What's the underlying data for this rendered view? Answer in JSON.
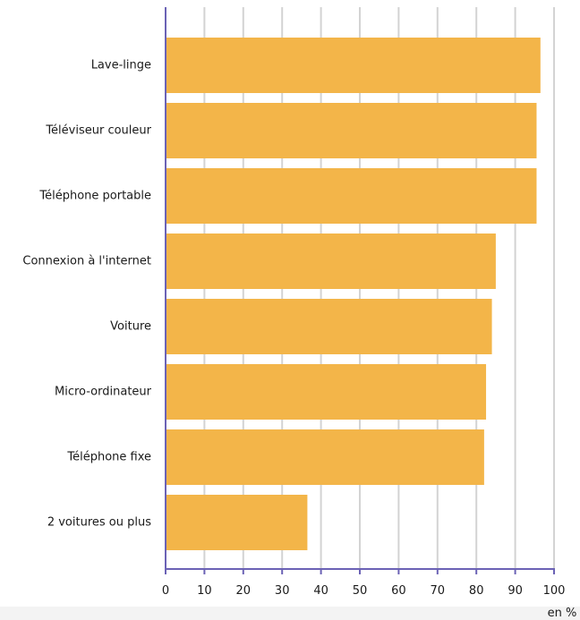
{
  "chart_data": {
    "type": "bar",
    "orientation": "horizontal",
    "categories": [
      "Lave-linge",
      "Téléviseur couleur",
      "Téléphone portable",
      "Connexion à l'internet",
      "Voiture",
      "Micro-ordinateur",
      "Téléphone fixe",
      "2 voitures ou plus"
    ],
    "values": [
      96.5,
      95.5,
      95.5,
      85,
      84,
      82.5,
      82,
      36.5
    ],
    "xticks": [
      "0",
      "10",
      "20",
      "30",
      "40",
      "50",
      "60",
      "70",
      "80",
      "90",
      "100"
    ],
    "xlim": [
      0,
      100
    ],
    "unit_label": "en %",
    "grid": "vertical",
    "colors": {
      "bar": "#F3B549",
      "axis": "#6B62B5",
      "grid": "#D3D3D3"
    }
  }
}
